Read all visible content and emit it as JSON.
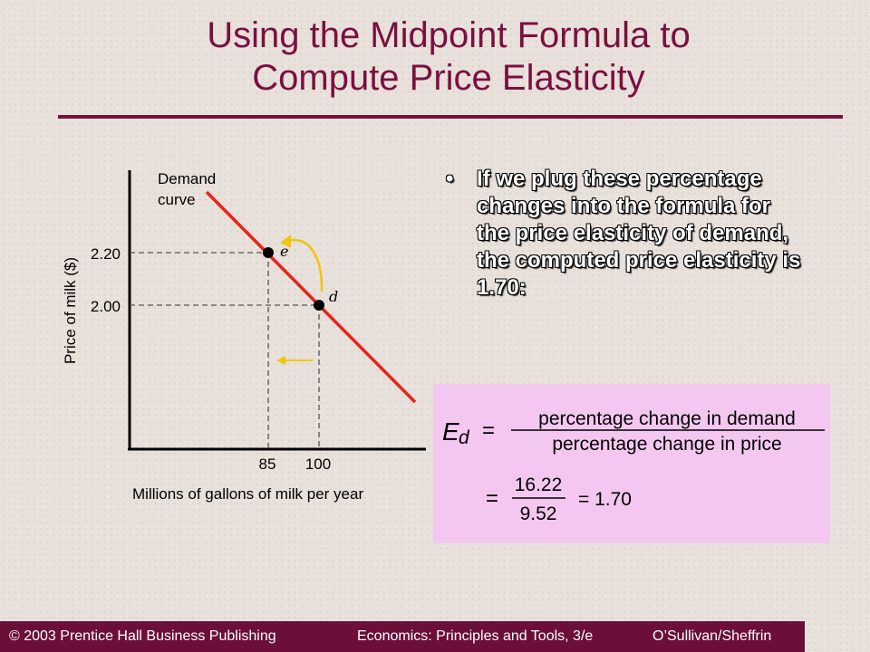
{
  "slide": {
    "title_line1": "Using the Midpoint Formula to",
    "title_line2": "Compute Price Elasticity",
    "bullet": "If we plug these percentage changes into the formula for the price elasticity of demand, the computed price elasticity is 1.70:"
  },
  "graph": {
    "curve_label_1": "Demand",
    "curve_label_2": "curve",
    "ylabel": "Price of milk ($)",
    "xlabel": "Millions of gallons of milk per year",
    "y_ticks": [
      "2.20",
      "2.00"
    ],
    "x_ticks": [
      "85",
      "100"
    ],
    "points": [
      {
        "label": "e",
        "quantity": 85,
        "price": 2.2
      },
      {
        "label": "d",
        "quantity": 100,
        "price": 2.0
      }
    ],
    "colors": {
      "curve": "#e8231b",
      "arrow": "#f2c40f",
      "axis": "#000000"
    }
  },
  "formula": {
    "symbol": "E",
    "subscript": "d",
    "equals": "=",
    "numerator": "percentage change in demand",
    "denominator": "percentage change in price",
    "num_value": "16.22",
    "den_value": "9.52",
    "result": "= 1.70"
  },
  "footer": {
    "left": "© 2003 Prentice Hall Business Publishing",
    "middle": "Economics: Principles and Tools, 3/e",
    "right": "O’Sullivan/Sheffrin"
  },
  "colors": {
    "title": "#7a1040",
    "footer_bg": "#6b0f3a",
    "formula_bg": "#f4c7f0"
  }
}
